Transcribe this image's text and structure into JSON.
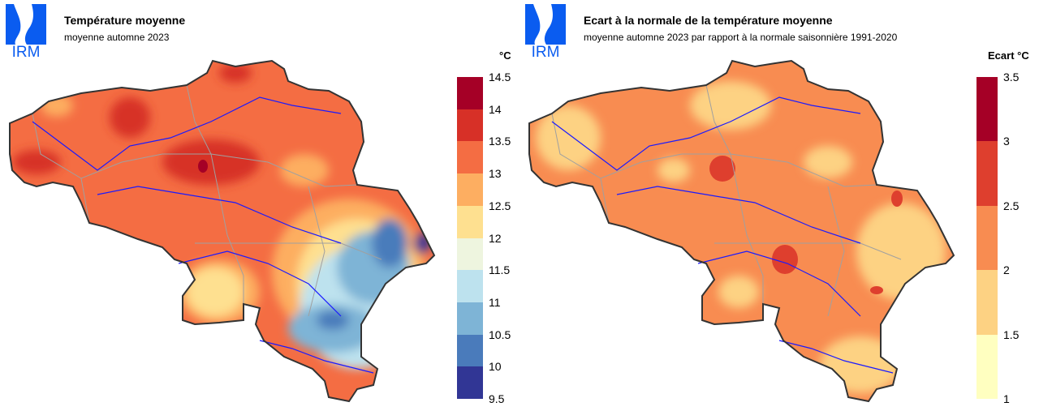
{
  "left": {
    "logo_text": "IRM",
    "title": "Température moyenne",
    "subtitle": "moyenne automne 2023",
    "unit": "°C",
    "legend": {
      "ticks": [
        "14.5",
        "14",
        "13.5",
        "13",
        "12.5",
        "12",
        "11.5",
        "11",
        "10.5",
        "10",
        "9.5"
      ],
      "colors": [
        "#a50026",
        "#d73027",
        "#f46d43",
        "#fdae61",
        "#fee090",
        "#eef5df",
        "#bde2ee",
        "#7eb4d6",
        "#4a7bbb",
        "#313695"
      ]
    }
  },
  "right": {
    "logo_text": "IRM",
    "title": "Ecart à la normale de la température moyenne",
    "subtitle": "moyenne automne 2023 par rapport à la normale saisonnière 1991-2020",
    "unit": "Ecart °C",
    "legend": {
      "ticks": [
        "3.5",
        "3",
        "2.5",
        "2",
        "1.5",
        "1"
      ],
      "colors": [
        "#a50026",
        "#de3f2e",
        "#f88c51",
        "#fdd283",
        "#ffffc0"
      ]
    }
  },
  "colors": {
    "logo": "#0a5cf0",
    "rivers": "#1a1aff",
    "borders": "#a0a0a0",
    "outline": "#333333"
  }
}
